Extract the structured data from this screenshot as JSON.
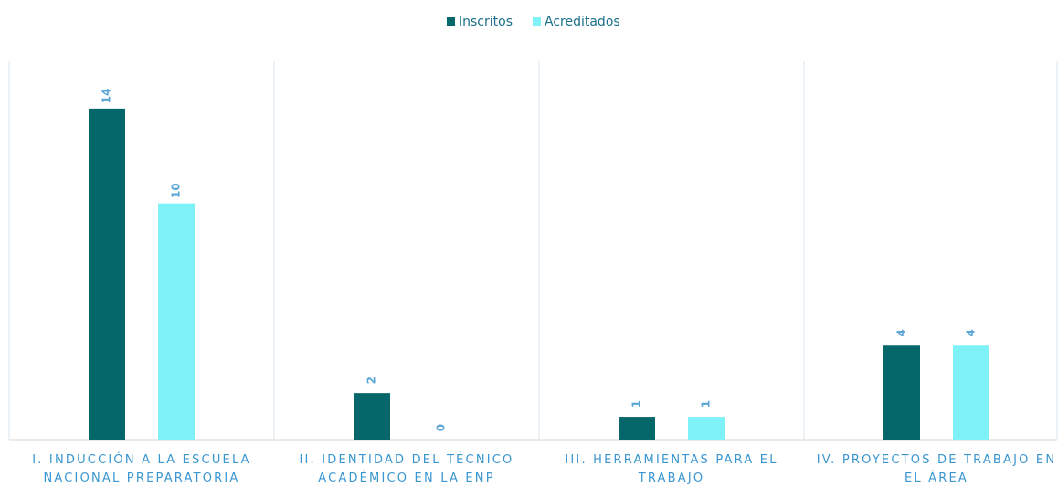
{
  "chart_data": {
    "type": "bar",
    "categories": [
      "I. INDUCCIÓN A LA ESCUELA NACIONAL PREPARATORIA",
      "II. IDENTIDAD DEL TÉCNICO ACADÉMICO EN LA ENP",
      "III. HERRAMIENTAS PARA EL TRABAJO",
      "IV. PROYECTOS DE TRABAJO EN EL ÁREA"
    ],
    "series": [
      {
        "name": "Inscritos",
        "color": "#05676a",
        "values": [
          14,
          2,
          1,
          4
        ]
      },
      {
        "name": "Acreditados",
        "color": "#7ff2f8",
        "values": [
          10,
          0,
          1,
          4
        ]
      }
    ],
    "ylim": [
      0,
      16
    ],
    "legend": "top"
  }
}
